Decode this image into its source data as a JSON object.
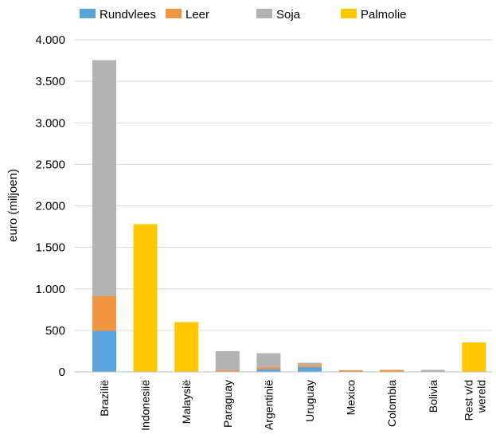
{
  "chart_data": {
    "type": "bar",
    "stacked": true,
    "categories": [
      "Brazilië",
      "Indonesiië",
      "Malaysië",
      "Paraguay",
      "Argentinië",
      "Uruguay",
      "Mexico",
      "Colombia",
      "Bolivia",
      "Rest v/d wereld"
    ],
    "series": [
      {
        "name": "Rundvlees",
        "color": "#5ba3dd",
        "values": [
          495,
          0,
          0,
          0,
          35,
          60,
          0,
          0,
          0,
          0
        ]
      },
      {
        "name": "Leer",
        "color": "#f39643",
        "values": [
          420,
          0,
          0,
          20,
          25,
          25,
          20,
          25,
          0,
          0
        ]
      },
      {
        "name": "Soja",
        "color": "#b3b3b3",
        "values": [
          2840,
          0,
          0,
          230,
          165,
          25,
          0,
          0,
          25,
          0
        ]
      },
      {
        "name": "Palmolie",
        "color": "#ffc800",
        "values": [
          0,
          1780,
          600,
          0,
          0,
          0,
          0,
          0,
          0,
          355
        ]
      }
    ],
    "ylabel": "euro (miljoen)",
    "ylim": [
      0,
      4000
    ],
    "yticks": [
      0,
      500,
      1000,
      1500,
      2000,
      2500,
      3000,
      3500,
      4000
    ],
    "ytick_labels": [
      "0",
      "500",
      "1.000",
      "1.500",
      "2.000",
      "2.500",
      "3.000",
      "3.500",
      "4.000"
    ],
    "grid": true,
    "legend_position": "top"
  }
}
